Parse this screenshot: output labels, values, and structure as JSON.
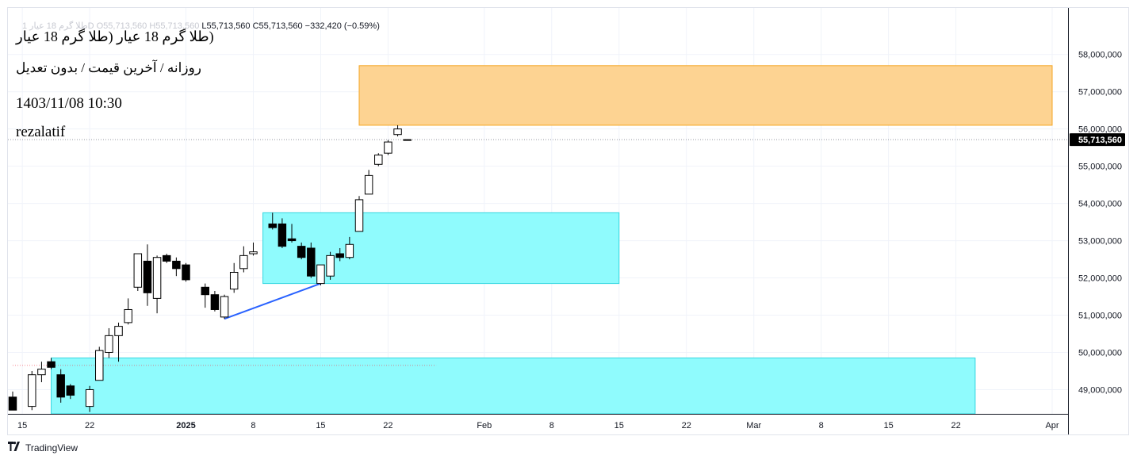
{
  "header": {
    "ohlc_faded": "طلا گرم 18 عیار 1D",
    "open": "O55,713,560",
    "high": "H55,713,560",
    "low": "L55,713,560",
    "close": "C55,713,560",
    "change": "−332,420 (−0.59%)"
  },
  "overlay": {
    "title": "(طلا گرم 18 عیار (طلا گرم 18 عیار",
    "subtitle": "روزانه / آخرین قیمت / بدون تعدیل",
    "datetime": "1403/11/08 10:30",
    "author": "rezalatif"
  },
  "footer": {
    "brand": "TradingView",
    "logo": "tv-logo-icon"
  },
  "colors": {
    "up_fill": "#ffffff",
    "down_fill": "#000000",
    "wick": "#000000",
    "supply_zone": "#fdd392",
    "supply_border": "#f5a623",
    "demand_zone": "#8ffbfd",
    "demand_border": "#33d6e0",
    "trendline": "#2962ff",
    "price_label_bg": "#000000"
  },
  "chart_data": {
    "type": "candlestick",
    "symbol": "طلا گرم 18 عیار",
    "interval": "1D",
    "last_price": 55713560,
    "last_price_label": "55,713,560",
    "y_axis": {
      "ticks": [
        49000000,
        50000000,
        51000000,
        52000000,
        53000000,
        54000000,
        55000000,
        56000000,
        57000000,
        58000000
      ],
      "tick_labels": [
        "49,000,000",
        "50,000,000",
        "51,000,000",
        "52,000,000",
        "53,000,000",
        "54,000,000",
        "55,000,000",
        "56,000,000",
        "57,000,000",
        "58,000,000"
      ],
      "range": [
        48350000,
        59250000
      ]
    },
    "x_axis": {
      "range": [
        "2024-12-14",
        "2025-04-01"
      ],
      "ticks": [
        {
          "date": "2024-12-15",
          "label": "15"
        },
        {
          "date": "2024-12-22",
          "label": "22"
        },
        {
          "date": "2025-01-01",
          "label": "2025"
        },
        {
          "date": "2025-01-08",
          "label": "8"
        },
        {
          "date": "2025-01-15",
          "label": "15"
        },
        {
          "date": "2025-01-22",
          "label": "22"
        },
        {
          "date": "2025-02-01",
          "label": "Feb"
        },
        {
          "date": "2025-02-08",
          "label": "8"
        },
        {
          "date": "2025-02-15",
          "label": "15"
        },
        {
          "date": "2025-02-22",
          "label": "22"
        },
        {
          "date": "2025-03-01",
          "label": "Mar"
        },
        {
          "date": "2025-03-08",
          "label": "8"
        },
        {
          "date": "2025-03-15",
          "label": "15"
        },
        {
          "date": "2025-03-22",
          "label": "22"
        },
        {
          "date": "2025-04-01",
          "label": "Apr"
        }
      ]
    },
    "candles": [
      {
        "date": "2024-12-14",
        "open": 48800000,
        "high": 48950000,
        "low": 48450000,
        "close": 48450000
      },
      {
        "date": "2024-12-16",
        "open": 48550000,
        "high": 49500000,
        "low": 48450000,
        "close": 49400000
      },
      {
        "date": "2024-12-17",
        "open": 49400000,
        "high": 49750000,
        "low": 49200000,
        "close": 49550000
      },
      {
        "date": "2024-12-18",
        "open": 49750000,
        "high": 49850000,
        "low": 49550000,
        "close": 49600000
      },
      {
        "date": "2024-12-19",
        "open": 49400000,
        "high": 49550000,
        "low": 48650000,
        "close": 48800000
      },
      {
        "date": "2024-12-20",
        "open": 49100000,
        "high": 49150000,
        "low": 48750000,
        "close": 48850000
      },
      {
        "date": "2024-12-22",
        "open": 48550000,
        "high": 49100000,
        "low": 48400000,
        "close": 49000000
      },
      {
        "date": "2024-12-23",
        "open": 49250000,
        "high": 50150000,
        "low": 49250000,
        "close": 50050000
      },
      {
        "date": "2024-12-24",
        "open": 50000000,
        "high": 50650000,
        "low": 49850000,
        "close": 50450000
      },
      {
        "date": "2024-12-25",
        "open": 50450000,
        "high": 50800000,
        "low": 49750000,
        "close": 50700000
      },
      {
        "date": "2024-12-26",
        "open": 50800000,
        "high": 51450000,
        "low": 50750000,
        "close": 51150000
      },
      {
        "date": "2024-12-27",
        "open": 51750000,
        "high": 52650000,
        "low": 51650000,
        "close": 52650000
      },
      {
        "date": "2024-12-28",
        "open": 52450000,
        "high": 52900000,
        "low": 51250000,
        "close": 51600000
      },
      {
        "date": "2024-12-29",
        "open": 51450000,
        "high": 52600000,
        "low": 51050000,
        "close": 52550000
      },
      {
        "date": "2024-12-30",
        "open": 52600000,
        "high": 52650000,
        "low": 52400000,
        "close": 52450000
      },
      {
        "date": "2024-12-31",
        "open": 52450000,
        "high": 52550000,
        "low": 52050000,
        "close": 52250000
      },
      {
        "date": "2025-01-01",
        "open": 52350000,
        "high": 52400000,
        "low": 51900000,
        "close": 51950000
      },
      {
        "date": "2025-01-03",
        "open": 51750000,
        "high": 51850000,
        "low": 51200000,
        "close": 51550000
      },
      {
        "date": "2025-01-04",
        "open": 51550000,
        "high": 51650000,
        "low": 51100000,
        "close": 51150000
      },
      {
        "date": "2025-01-05",
        "open": 50950000,
        "high": 51550000,
        "low": 50900000,
        "close": 51500000
      },
      {
        "date": "2025-01-06",
        "open": 51700000,
        "high": 52400000,
        "low": 51600000,
        "close": 52150000
      },
      {
        "date": "2025-01-07",
        "open": 52250000,
        "high": 52850000,
        "low": 52150000,
        "close": 52600000
      },
      {
        "date": "2025-01-08",
        "open": 52650000,
        "high": 52950000,
        "low": 52600000,
        "close": 52700000
      },
      {
        "date": "2025-01-10",
        "open": 53450000,
        "high": 53750000,
        "low": 53300000,
        "close": 53350000
      },
      {
        "date": "2025-01-11",
        "open": 53450000,
        "high": 53600000,
        "low": 52800000,
        "close": 52850000
      },
      {
        "date": "2025-01-12",
        "open": 53050000,
        "high": 53450000,
        "low": 52950000,
        "close": 53000000
      },
      {
        "date": "2025-01-13",
        "open": 52850000,
        "high": 52950000,
        "low": 52500000,
        "close": 52550000
      },
      {
        "date": "2025-01-14",
        "open": 52800000,
        "high": 52950000,
        "low": 52000000,
        "close": 52050000
      },
      {
        "date": "2025-01-15",
        "open": 51850000,
        "high": 52350000,
        "low": 51800000,
        "close": 52350000
      },
      {
        "date": "2025-01-16",
        "open": 52050000,
        "high": 52700000,
        "low": 51950000,
        "close": 52600000
      },
      {
        "date": "2025-01-17",
        "open": 52650000,
        "high": 52800000,
        "low": 52450000,
        "close": 52550000
      },
      {
        "date": "2025-01-18",
        "open": 52550000,
        "high": 53100000,
        "low": 52500000,
        "close": 52900000
      },
      {
        "date": "2025-01-19",
        "open": 53250000,
        "high": 54200000,
        "low": 53250000,
        "close": 54100000
      },
      {
        "date": "2025-01-20",
        "open": 54250000,
        "high": 54900000,
        "low": 54250000,
        "close": 54750000
      },
      {
        "date": "2025-01-21",
        "open": 55050000,
        "high": 55350000,
        "low": 55000000,
        "close": 55300000
      },
      {
        "date": "2025-01-22",
        "open": 55350000,
        "high": 55700000,
        "low": 55300000,
        "close": 55650000
      },
      {
        "date": "2025-01-23",
        "open": 55850000,
        "high": 56100000,
        "low": 55800000,
        "close": 56000000
      },
      {
        "date": "2025-01-24",
        "open": 55713560,
        "high": 55713560,
        "low": 55713560,
        "close": 55713560
      }
    ],
    "zones": [
      {
        "kind": "supply",
        "from": "2025-01-19",
        "to": "2025-04-01",
        "top": 57700000,
        "bottom": 56100000
      },
      {
        "kind": "demand",
        "from": "2025-01-09",
        "to": "2025-02-15",
        "top": 53750000,
        "bottom": 51850000
      },
      {
        "kind": "demand",
        "from": "2024-12-18",
        "to": "2025-03-24",
        "top": 49850000,
        "bottom": 48350000
      }
    ],
    "trendline": {
      "from": {
        "date": "2025-01-05",
        "price": 50900000
      },
      "to": {
        "date": "2025-01-15",
        "price": 51850000
      }
    },
    "reference_lines": [
      {
        "price": 49650000,
        "from": "2024-12-14",
        "to": "2025-01-27",
        "color": "#f23645"
      }
    ]
  }
}
